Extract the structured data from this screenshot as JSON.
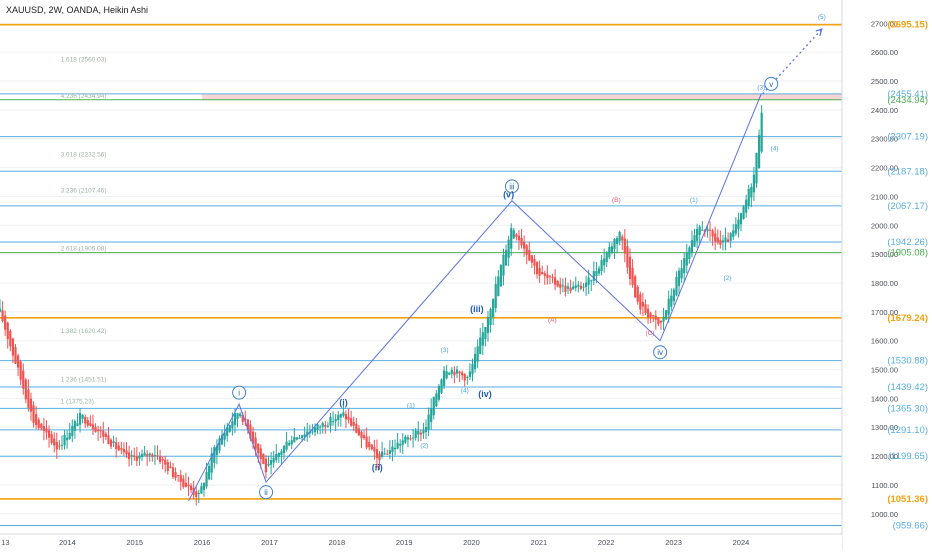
{
  "header": {
    "title": "XAUUSD, 2W, OANDA, Heikin Ashi"
  },
  "colors": {
    "up": "#26a69a",
    "down": "#ef5350",
    "wave": "#5b73e8",
    "blue_lvl": "#5aaee0",
    "orange_lvl": "#f2a30f",
    "green_lvl": "#4caf50",
    "fib_text": "#9fb3a6",
    "zone": "#f4c7c7",
    "grid": "#eef1f5",
    "axis_text": "#4a4f5a"
  },
  "chart_data": {
    "type": "candlestick",
    "title": "XAUUSD, 2W, OANDA, Heikin Ashi",
    "x_ticks": [
      "13",
      "2014",
      "2015",
      "2016",
      "2017",
      "2018",
      "2019",
      "2020",
      "2021",
      "2022",
      "2023",
      "2024"
    ],
    "x_range": [
      2013.0,
      2025.5
    ],
    "y_range": [
      930,
      2760
    ],
    "y_ticks": [
      1000,
      1100,
      1200,
      1300,
      1400,
      1500,
      1600,
      1700,
      1800,
      1900,
      2000,
      2100,
      2200,
      2300,
      2400,
      2500,
      2600,
      2700
    ],
    "y_tick_labels": [
      "1000.00",
      "1100.00",
      "1200.00",
      "1300.00",
      "1400.00",
      "1500.00",
      "1600.00",
      "1700.00",
      "1800.00",
      "1900.00",
      "2000.00",
      "2100.00",
      "2200.00",
      "2300.00",
      "2400.00",
      "2500.00",
      "2600.00",
      "2700.00"
    ],
    "price_path": [
      [
        2013.0,
        1700
      ],
      [
        2013.5,
        1320
      ],
      [
        2013.85,
        1230
      ],
      [
        2014.2,
        1340
      ],
      [
        2014.5,
        1280
      ],
      [
        2014.9,
        1190
      ],
      [
        2015.3,
        1210
      ],
      [
        2015.6,
        1130
      ],
      [
        2015.95,
        1060
      ],
      [
        2016.2,
        1240
      ],
      [
        2016.55,
        1360
      ],
      [
        2016.95,
        1150
      ],
      [
        2017.3,
        1260
      ],
      [
        2017.7,
        1300
      ],
      [
        2018.1,
        1345
      ],
      [
        2018.6,
        1190
      ],
      [
        2018.95,
        1250
      ],
      [
        2019.3,
        1290
      ],
      [
        2019.6,
        1510
      ],
      [
        2019.95,
        1470
      ],
      [
        2020.2,
        1650
      ],
      [
        2020.6,
        2000
      ],
      [
        2021.0,
        1830
      ],
      [
        2021.4,
        1780
      ],
      [
        2021.7,
        1790
      ],
      [
        2022.2,
        1980
      ],
      [
        2022.45,
        1730
      ],
      [
        2022.8,
        1650
      ],
      [
        2023.1,
        1850
      ],
      [
        2023.4,
        2000
      ],
      [
        2023.7,
        1930
      ],
      [
        2023.85,
        1960
      ],
      [
        2024.0,
        2030
      ],
      [
        2024.2,
        2180
      ],
      [
        2024.32,
        2430
      ]
    ],
    "wave_path": [
      [
        2015.8,
        1045
      ],
      [
        2016.55,
        1380
      ],
      [
        2016.95,
        1110
      ],
      [
        2020.6,
        2085
      ],
      [
        2022.8,
        1600
      ],
      [
        2024.3,
        2455
      ]
    ],
    "wave_extension": [
      [
        2024.32,
        2455
      ],
      [
        2025.2,
        2680
      ]
    ],
    "levels": [
      {
        "price": 2695.15,
        "label": "(2695.15)",
        "kind": "orange"
      },
      {
        "price": 2455.41,
        "label": "(2455.41)",
        "kind": "blue"
      },
      {
        "price": 2434.94,
        "label": "(2434.94)",
        "kind": "green"
      },
      {
        "price": 2307.19,
        "label": "(2307.19)",
        "kind": "blue"
      },
      {
        "price": 2187.18,
        "label": "(2187.18)",
        "kind": "blue"
      },
      {
        "price": 2067.17,
        "label": "(2067.17)",
        "kind": "blue"
      },
      {
        "price": 1942.26,
        "label": "(1942.26)",
        "kind": "blue"
      },
      {
        "price": 1905.08,
        "label": "(1905.08)",
        "kind": "green"
      },
      {
        "price": 1679.24,
        "label": "(1679.24)",
        "kind": "orange"
      },
      {
        "price": 1530.88,
        "label": "(1530.88)",
        "kind": "blue"
      },
      {
        "price": 1439.42,
        "label": "(1439.42)",
        "kind": "blue"
      },
      {
        "price": 1365.3,
        "label": "(1365.30)",
        "kind": "blue"
      },
      {
        "price": 1291.1,
        "label": "(1291.10)",
        "kind": "blue"
      },
      {
        "price": 1199.65,
        "label": "(1199.65)",
        "kind": "blue"
      },
      {
        "price": 1051.36,
        "label": "(1051.36)",
        "kind": "orange"
      },
      {
        "price": 959.66,
        "label": "(959.66)",
        "kind": "blue"
      }
    ],
    "zone": [
      2434.94,
      2455.41
    ],
    "fib_labels": [
      {
        "text": "1.618 (2560.03)",
        "price": 2560,
        "x": 2013.9
      },
      {
        "text": "4.236 (2434.94)",
        "price": 2435,
        "x": 2013.9
      },
      {
        "text": "3.618 (2232.56)",
        "price": 2232,
        "x": 2013.9
      },
      {
        "text": "3.236 (2107.46)",
        "price": 2107,
        "x": 2013.9
      },
      {
        "text": "2.618 (1905.08)",
        "price": 1905,
        "x": 2013.9
      },
      {
        "text": "1.382 (1620.42)",
        "price": 1620,
        "x": 2013.9
      },
      {
        "text": "1.236 (1451.51)",
        "price": 1451,
        "x": 2013.9
      },
      {
        "text": "1 (1375.23)",
        "price": 1375,
        "x": 2013.9
      }
    ],
    "wave_labels": [
      {
        "text": "i",
        "x": 2016.55,
        "price": 1420,
        "style": "circle"
      },
      {
        "text": "ii",
        "x": 2016.95,
        "price": 1075,
        "style": "circle"
      },
      {
        "text": "iii",
        "x": 2020.6,
        "price": 2135,
        "style": "circle"
      },
      {
        "text": "iv",
        "x": 2022.8,
        "price": 1560,
        "style": "circle"
      },
      {
        "text": "v",
        "x": 2024.45,
        "price": 2490,
        "style": "circle"
      },
      {
        "text": "(i)",
        "x": 2018.1,
        "price": 1375,
        "style": "paren"
      },
      {
        "text": "(ii)",
        "x": 2018.6,
        "price": 1150,
        "style": "paren"
      },
      {
        "text": "(iii)",
        "x": 2020.08,
        "price": 1700,
        "style": "paren"
      },
      {
        "text": "(iv)",
        "x": 2020.2,
        "price": 1405,
        "style": "paren"
      },
      {
        "text": "(v)",
        "x": 2020.55,
        "price": 2097,
        "style": "paren"
      },
      {
        "text": "(1)",
        "x": 2019.1,
        "price": 1368,
        "style": "small"
      },
      {
        "text": "(2)",
        "x": 2019.3,
        "price": 1230,
        "style": "small"
      },
      {
        "text": "(3)",
        "x": 2019.6,
        "price": 1560,
        "style": "small"
      },
      {
        "text": "(4)",
        "x": 2019.9,
        "price": 1420,
        "style": "small"
      },
      {
        "text": "(A)",
        "x": 2021.2,
        "price": 1665,
        "style": "red"
      },
      {
        "text": "(B)",
        "x": 2022.15,
        "price": 2080,
        "style": "red"
      },
      {
        "text": "(C)",
        "x": 2022.65,
        "price": 1620,
        "style": "red"
      },
      {
        "text": "(1)",
        "x": 2023.3,
        "price": 2080,
        "style": "small"
      },
      {
        "text": "(2)",
        "x": 2023.8,
        "price": 1810,
        "style": "small"
      },
      {
        "text": "(3)",
        "x": 2024.3,
        "price": 2470,
        "style": "small"
      },
      {
        "text": "(4)",
        "x": 2024.5,
        "price": 2260,
        "style": "small"
      },
      {
        "text": "(5)",
        "x": 2025.2,
        "price": 2715,
        "style": "small"
      }
    ]
  }
}
